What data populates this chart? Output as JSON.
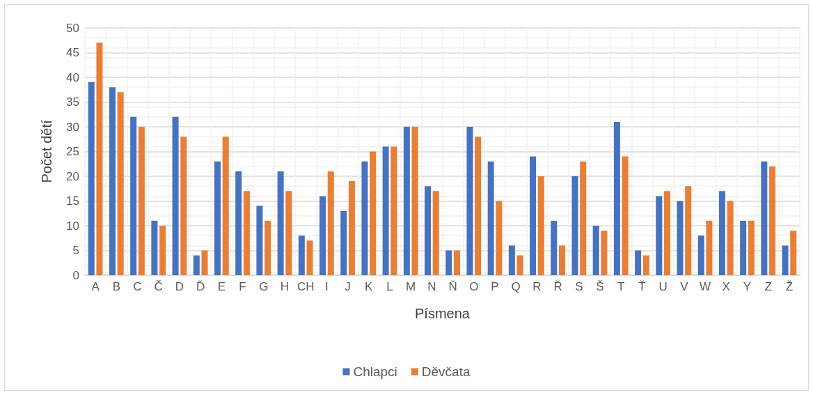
{
  "chart_data": {
    "type": "bar",
    "xlabel": "Písmena",
    "ylabel": "Počet dětí",
    "categories": [
      "A",
      "B",
      "C",
      "Č",
      "D",
      "Ď",
      "E",
      "F",
      "G",
      "H",
      "CH",
      "I",
      "J",
      "K",
      "L",
      "M",
      "N",
      "Ň",
      "O",
      "P",
      "Q",
      "R",
      "Ř",
      "S",
      "Š",
      "T",
      "Ť",
      "U",
      "V",
      "W",
      "X",
      "Y",
      "Z",
      "Ž"
    ],
    "series": [
      {
        "name": "Chlapci",
        "color": "#4472c4",
        "values": [
          39,
          38,
          32,
          11,
          32,
          4,
          23,
          21,
          14,
          21,
          8,
          16,
          13,
          23,
          26,
          30,
          18,
          5,
          30,
          23,
          6,
          24,
          11,
          20,
          10,
          31,
          5,
          16,
          15,
          8,
          17,
          11,
          23,
          6
        ]
      },
      {
        "name": "Děvčata",
        "color": "#ed7d31",
        "values": [
          47,
          37,
          30,
          10,
          28,
          5,
          28,
          17,
          11,
          17,
          7,
          21,
          19,
          25,
          26,
          30,
          17,
          5,
          28,
          15,
          4,
          20,
          6,
          23,
          9,
          24,
          4,
          17,
          18,
          11,
          15,
          11,
          22,
          9
        ]
      }
    ],
    "ylim": [
      0,
      50
    ],
    "yticks": [
      0,
      5,
      10,
      15,
      20,
      25,
      30,
      35,
      40,
      45,
      50
    ],
    "grid": true,
    "legend": "bottom"
  }
}
